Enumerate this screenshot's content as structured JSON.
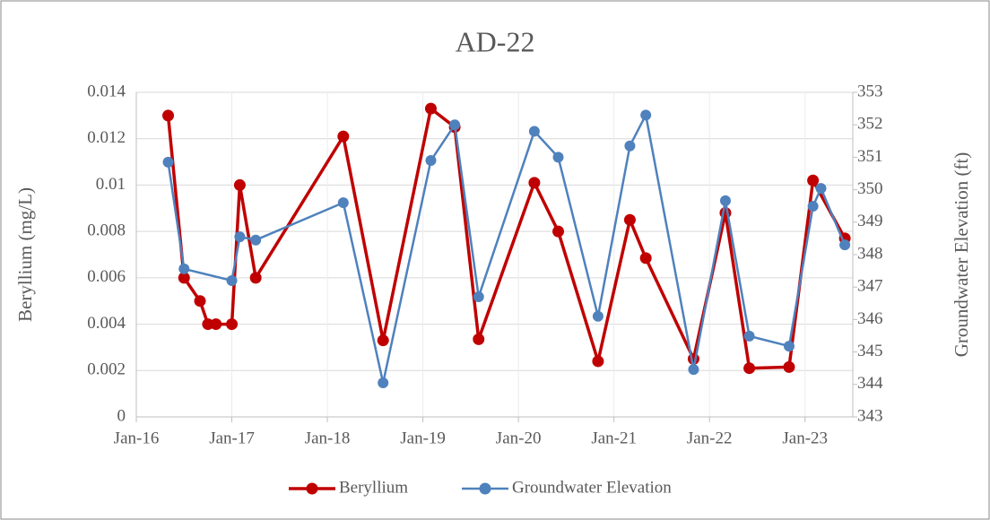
{
  "chart_data": {
    "type": "line",
    "title": "AD-22",
    "ylabel": "Beryllium (mg/L)",
    "y2label": "Groundwater Elevation (ft)",
    "xlim": [
      "2016-01",
      "2023-07"
    ],
    "xticks": [
      {
        "value": "2016-01",
        "label": "Jan-16"
      },
      {
        "value": "2017-01",
        "label": "Jan-17"
      },
      {
        "value": "2018-01",
        "label": "Jan-18"
      },
      {
        "value": "2019-01",
        "label": "Jan-19"
      },
      {
        "value": "2020-01",
        "label": "Jan-20"
      },
      {
        "value": "2021-01",
        "label": "Jan-21"
      },
      {
        "value": "2022-01",
        "label": "Jan-22"
      },
      {
        "value": "2023-01",
        "label": "Jan-23"
      }
    ],
    "ylim": [
      0,
      0.014
    ],
    "yticks": [
      0,
      0.002,
      0.004,
      0.006,
      0.008,
      0.01,
      0.012,
      0.014
    ],
    "y2lim": [
      343,
      353
    ],
    "y2ticks": [
      343,
      344,
      345,
      346,
      347,
      348,
      349,
      350,
      351,
      352,
      353
    ],
    "grid": true,
    "legend": "bottom",
    "series": [
      {
        "name": "Beryllium",
        "color": "#c00000",
        "axis": "y",
        "x": [
          "2016-05",
          "2016-07",
          "2016-09",
          "2016-10",
          "2016-11",
          "2017-01",
          "2017-02",
          "2017-04",
          "2018-03",
          "2018-08",
          "2019-02",
          "2019-05",
          "2019-08",
          "2020-03",
          "2020-06",
          "2020-11",
          "2021-03",
          "2021-05",
          "2021-11",
          "2022-03",
          "2022-06",
          "2022-11",
          "2023-02",
          "2023-06"
        ],
        "values": [
          0.013,
          0.006,
          0.005,
          0.004,
          0.004,
          0.004,
          0.01,
          0.006,
          0.0121,
          0.0033,
          0.0133,
          0.0125,
          0.00335,
          0.0101,
          0.008,
          0.0024,
          0.0085,
          0.00685,
          0.0025,
          0.0088,
          0.0021,
          0.00215,
          0.0102,
          0.0077
        ]
      },
      {
        "name": "Groundwater Elevation",
        "color": "#4f81bd",
        "axis": "y2",
        "x": [
          "2016-05",
          "2016-07",
          "2017-01",
          "2017-02",
          "2017-04",
          "2018-03",
          "2018-08",
          "2019-02",
          "2019-05",
          "2019-08",
          "2020-03",
          "2020-06",
          "2020-11",
          "2021-03",
          "2021-05",
          "2021-11",
          "2022-03",
          "2022-06",
          "2022-11",
          "2023-02",
          "2023-03",
          "2023-06"
        ],
        "values": [
          350.85,
          347.56,
          347.2,
          348.55,
          348.45,
          349.6,
          344.05,
          350.9,
          352.0,
          346.7,
          351.8,
          351.0,
          346.1,
          351.35,
          352.3,
          344.46,
          349.66,
          345.49,
          345.18,
          349.49,
          350.04,
          348.3
        ]
      }
    ]
  }
}
